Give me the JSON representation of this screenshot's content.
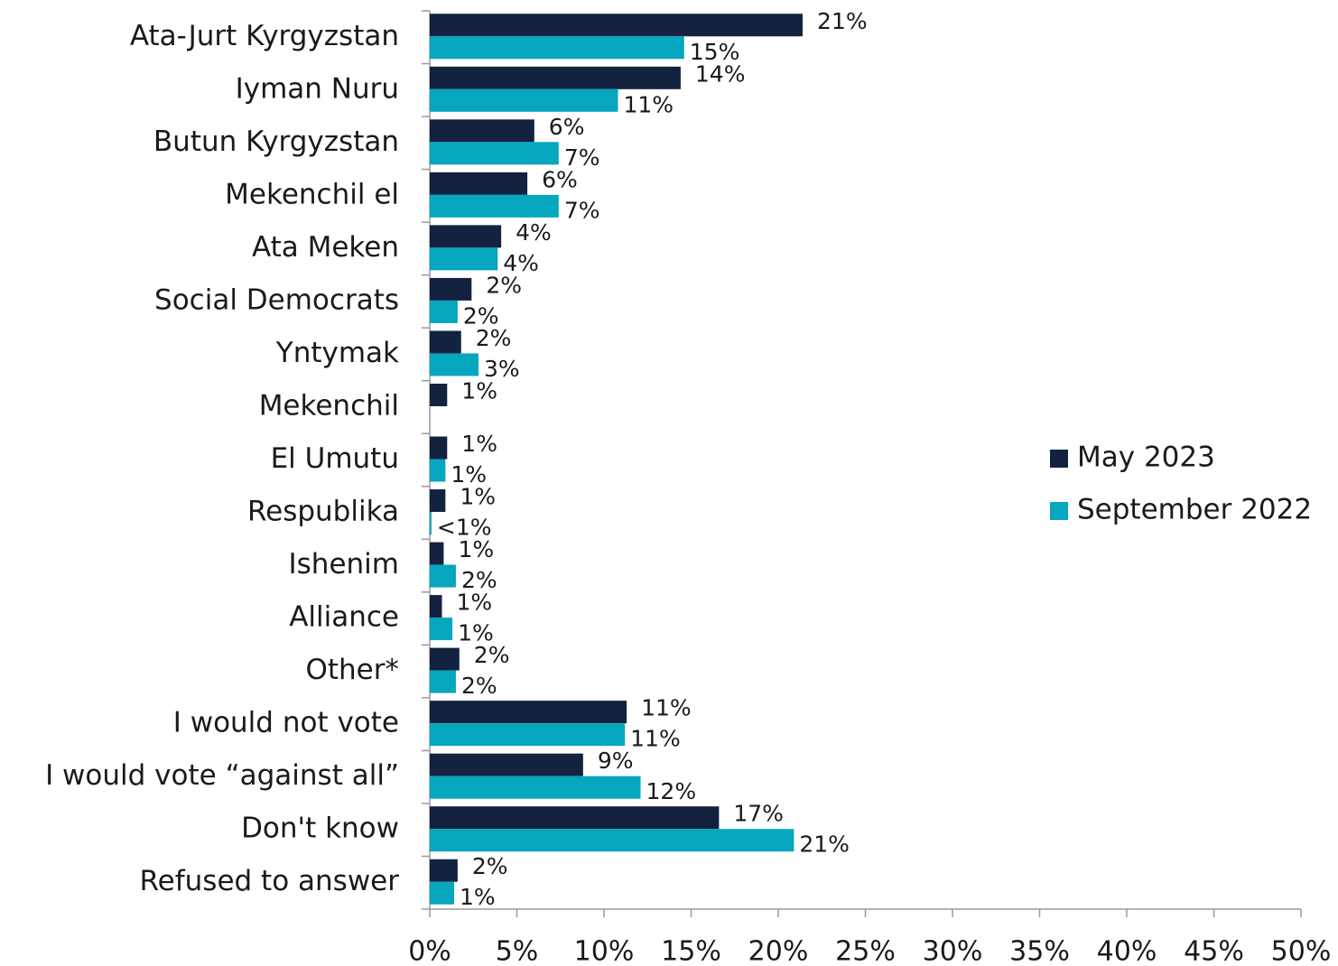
{
  "chart_data": {
    "type": "hbar",
    "categories": [
      "Ata-Jurt Kyrgyzstan",
      "Iyman Nuru",
      "Butun Kyrgyzstan",
      "Mekenchil el",
      "Ata Meken",
      "Social Democrats",
      "Yntymak",
      "Mekenchil",
      "El Umutu",
      "Respublika",
      "Ishenim",
      "Alliance",
      "Other*",
      "I would not vote",
      "I would vote “against all”",
      "Don't know",
      "Refused to answer"
    ],
    "series": [
      {
        "name": "May 2023",
        "color": "#13223f",
        "values": [
          21.4,
          14.4,
          6.0,
          5.6,
          4.1,
          2.4,
          1.8,
          1.0,
          1.0,
          0.9,
          0.8,
          0.7,
          1.7,
          11.3,
          8.8,
          16.6,
          1.6
        ],
        "value_labels": [
          "21%",
          "14%",
          "6%",
          "6%",
          "4%",
          "2%",
          "2%",
          "1%",
          "1%",
          "1%",
          "1%",
          "1%",
          "2%",
          "11%",
          "9%",
          "17%",
          "2%"
        ]
      },
      {
        "name": "September 2022",
        "color": "#05a6be",
        "values": [
          14.6,
          10.8,
          7.4,
          7.4,
          3.9,
          1.6,
          2.8,
          null,
          0.9,
          0.1,
          1.5,
          1.3,
          1.5,
          11.2,
          12.1,
          20.9,
          1.4
        ],
        "value_labels": [
          "15%",
          "11%",
          "7%",
          "7%",
          "4%",
          "2%",
          "3%",
          null,
          "1%",
          "<1%",
          "2%",
          "1%",
          "2%",
          "11%",
          "12%",
          "21%",
          "1%"
        ]
      }
    ],
    "xlim": [
      0,
      50
    ],
    "xticks": [
      {
        "value": 0,
        "label": "0%"
      },
      {
        "value": 5,
        "label": "5%"
      },
      {
        "value": 10,
        "label": "10%"
      },
      {
        "value": 15,
        "label": "15%"
      },
      {
        "value": 20,
        "label": "20%"
      },
      {
        "value": 25,
        "label": "25%"
      },
      {
        "value": 30,
        "label": "30%"
      },
      {
        "value": 35,
        "label": "35%"
      },
      {
        "value": 40,
        "label": "40%"
      },
      {
        "value": 45,
        "label": "45%"
      },
      {
        "value": 50,
        "label": "50%"
      }
    ],
    "legend": "right"
  }
}
